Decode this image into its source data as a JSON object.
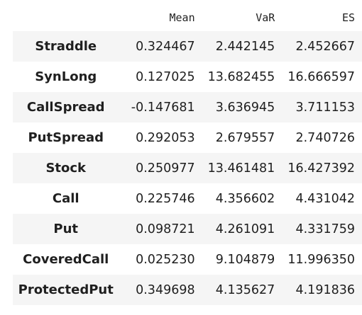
{
  "table": {
    "columns": [
      "Mean",
      "VaR",
      "ES"
    ],
    "rows": [
      {
        "label": "Straddle",
        "values": [
          "0.324467",
          "2.442145",
          "2.452667"
        ]
      },
      {
        "label": "SynLong",
        "values": [
          "0.127025",
          "13.682455",
          "16.666597"
        ]
      },
      {
        "label": "CallSpread",
        "values": [
          "-0.147681",
          "3.636945",
          "3.711153"
        ]
      },
      {
        "label": "PutSpread",
        "values": [
          "0.292053",
          "2.679557",
          "2.740726"
        ]
      },
      {
        "label": "Stock",
        "values": [
          "0.250977",
          "13.461481",
          "16.427392"
        ]
      },
      {
        "label": "Call",
        "values": [
          "0.225746",
          "4.356602",
          "4.431042"
        ]
      },
      {
        "label": "Put",
        "values": [
          "0.098721",
          "4.261091",
          "4.331759"
        ]
      },
      {
        "label": "CoveredCall",
        "values": [
          "0.025230",
          "9.104879",
          "11.996350"
        ]
      },
      {
        "label": "ProtectedPut",
        "values": [
          "0.349698",
          "4.135627",
          "4.191836"
        ]
      }
    ]
  }
}
